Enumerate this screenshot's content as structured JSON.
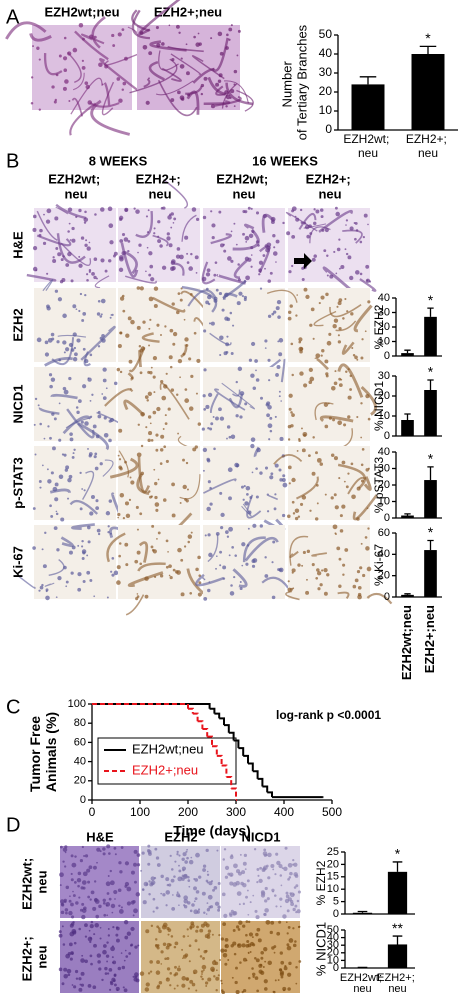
{
  "figure": {
    "panel_a": {
      "letter": "A",
      "image_labels": [
        "EZH2wt;neu",
        "EZH2+;neu"
      ]
    },
    "panel_b": {
      "letter": "B",
      "groups": [
        "8 WEEKS",
        "16 WEEKS"
      ],
      "columns": [
        "EZH2wt; neu",
        "EZH2+; neu",
        "EZH2wt; neu",
        "EZH2+; neu"
      ],
      "rows": [
        "H&E",
        "EZH2",
        "NICD1",
        "p-STAT3",
        "Ki-67"
      ]
    },
    "panel_c": {
      "letter": "C"
    },
    "panel_d": {
      "letter": "D",
      "columns": [
        "H&E",
        "EZH2",
        "NICD1"
      ],
      "rows": [
        "EZH2wt; neu",
        "EZH2+; neu"
      ]
    }
  },
  "chart_data": [
    {
      "type": "bar",
      "ylabel": "Number of Tertiary Branches",
      "categories": [
        "EZH2wt; neu",
        "EZH2+; neu"
      ],
      "values": [
        24,
        40
      ],
      "errors": [
        4,
        4
      ],
      "significance": "*",
      "color": "#000000",
      "ylim": [
        0,
        50
      ],
      "yticks": [
        0,
        10,
        20,
        30,
        40,
        50
      ]
    },
    {
      "type": "bar",
      "ylabel": "% EZH2",
      "values": [
        2,
        27
      ],
      "errors": [
        2,
        6
      ],
      "significance": "*",
      "color": "#000000",
      "ylim": [
        0,
        40
      ],
      "yticks": [
        0,
        10,
        20,
        30,
        40
      ]
    },
    {
      "type": "bar",
      "ylabel": "% NICD1",
      "values": [
        8,
        23
      ],
      "errors": [
        3,
        5
      ],
      "significance": "*",
      "color": "#000000",
      "ylim": [
        0,
        30
      ],
      "yticks": [
        0,
        10,
        20,
        30
      ]
    },
    {
      "type": "bar",
      "ylabel": "% pSTAT3",
      "values": [
        1.5,
        23
      ],
      "errors": [
        1,
        8
      ],
      "significance": "*",
      "color": "#000000",
      "ylim": [
        0,
        40
      ],
      "yticks": [
        0,
        10,
        20,
        30,
        40
      ]
    },
    {
      "type": "bar",
      "ylabel": "% Ki-67",
      "categories": [
        "EZH2wt;neu",
        "EZH2+;neu"
      ],
      "values": [
        2,
        44
      ],
      "errors": [
        1,
        9
      ],
      "significance": "*",
      "color": "#000000",
      "ylim": [
        0,
        60
      ],
      "yticks": [
        0,
        20,
        40,
        60
      ]
    },
    {
      "type": "step",
      "xlabel": "Time (days)",
      "ylabel": "Tumor Free Animals (%)",
      "annotation": "log-rank p <0.0001",
      "series": [
        {
          "name": "EZH2wt;neu",
          "color": "#000000",
          "dashed": false,
          "x": [
            0,
            245,
            255,
            265,
            275,
            285,
            295,
            305,
            315,
            325,
            335,
            345,
            355,
            365,
            375,
            480
          ],
          "values": [
            100,
            95,
            90,
            85,
            78,
            70,
            62,
            54,
            46,
            38,
            30,
            22,
            14,
            8,
            3,
            3
          ]
        },
        {
          "name": "EZH2+;neu",
          "color": "#e8141c",
          "dashed": true,
          "x": [
            0,
            200,
            210,
            220,
            230,
            240,
            250,
            260,
            270,
            280,
            290,
            300
          ],
          "values": [
            100,
            95,
            90,
            82,
            74,
            66,
            56,
            46,
            36,
            24,
            12,
            0
          ]
        }
      ],
      "xlim": [
        0,
        500
      ],
      "xticks": [
        0,
        100,
        200,
        300,
        400,
        500
      ],
      "ylim": [
        0,
        100
      ],
      "yticks": [
        0,
        20,
        40,
        60,
        80,
        100
      ]
    },
    {
      "type": "bar",
      "ylabel": "% EZH2",
      "values": [
        0.5,
        17
      ],
      "errors": [
        0.5,
        4
      ],
      "significance": "*",
      "color": "#000000",
      "ylim": [
        0,
        25
      ],
      "yticks": [
        0,
        5,
        10,
        15,
        20,
        25
      ]
    },
    {
      "type": "bar",
      "ylabel": "% NICD1",
      "categories": [
        "EZH2wt; neu",
        "EZH2+; neu"
      ],
      "values": [
        0.5,
        31
      ],
      "errors": [
        0.3,
        11
      ],
      "significance": "**",
      "color": "#000000",
      "ylim": [
        0,
        50
      ],
      "yticks": [
        0,
        10,
        20,
        30,
        40,
        50
      ]
    }
  ]
}
